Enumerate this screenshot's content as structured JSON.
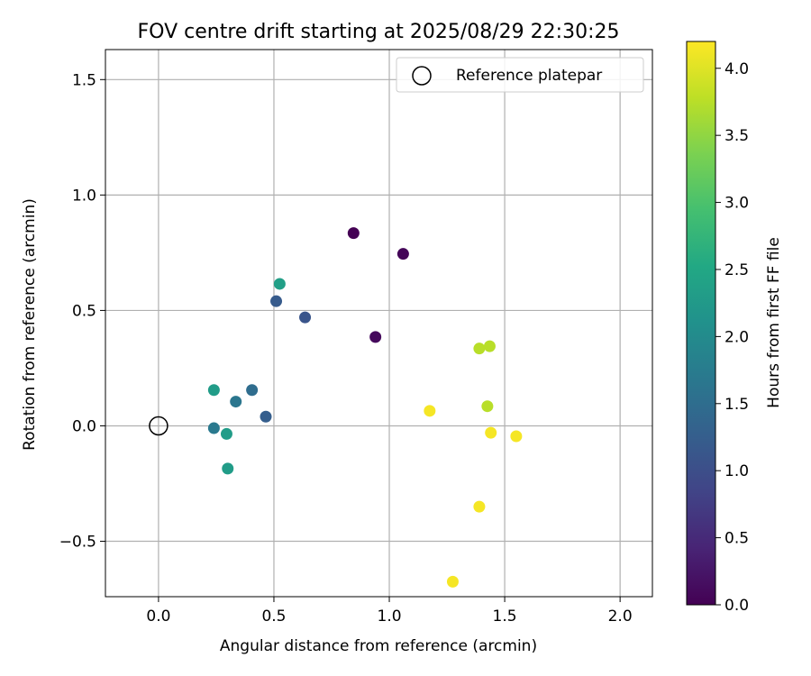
{
  "chart_data": {
    "type": "scatter",
    "title": "FOV centre drift starting at 2025/08/29 22:30:25",
    "xlabel": "Angular distance from reference (arcmin)",
    "ylabel": "Rotation from reference (arcmin)",
    "xlim": [
      -0.23,
      2.14
    ],
    "ylim": [
      -0.74,
      1.63
    ],
    "xticks": [
      0.0,
      0.5,
      1.0,
      1.5,
      2.0
    ],
    "xtick_labels": [
      "0.0",
      "0.5",
      "1.0",
      "1.5",
      "2.0"
    ],
    "yticks": [
      -0.5,
      0.0,
      0.5,
      1.0,
      1.5
    ],
    "ytick_labels": [
      "−0.5",
      "0.0",
      "0.5",
      "1.0",
      "1.5"
    ],
    "grid": true,
    "legend": {
      "placement": "top-right",
      "entries": [
        "Reference platepar"
      ]
    },
    "reference_point": {
      "x": 0.0,
      "y": 0.0,
      "label": "Reference platepar"
    },
    "colorbar": {
      "label": "Hours from first FF file",
      "colormap": "viridis",
      "range": [
        0.0,
        4.2
      ],
      "ticks": [
        0.0,
        0.5,
        1.0,
        1.5,
        2.0,
        2.5,
        3.0,
        3.5,
        4.0
      ],
      "tick_labels": [
        "0.0",
        "0.5",
        "1.0",
        "1.5",
        "2.0",
        "2.5",
        "3.0",
        "3.5",
        "4.0"
      ]
    },
    "points": [
      {
        "x": 0.845,
        "y": 0.835,
        "hours": 0.0
      },
      {
        "x": 1.06,
        "y": 0.745,
        "hours": 0.05
      },
      {
        "x": 0.94,
        "y": 0.385,
        "hours": 0.1
      },
      {
        "x": 0.635,
        "y": 0.47,
        "hours": 1.1
      },
      {
        "x": 0.51,
        "y": 0.54,
        "hours": 1.2
      },
      {
        "x": 0.465,
        "y": 0.04,
        "hours": 1.25
      },
      {
        "x": 0.405,
        "y": 0.155,
        "hours": 1.5
      },
      {
        "x": 0.335,
        "y": 0.105,
        "hours": 1.65
      },
      {
        "x": 0.24,
        "y": -0.01,
        "hours": 1.7
      },
      {
        "x": 0.525,
        "y": 0.615,
        "hours": 2.35
      },
      {
        "x": 0.24,
        "y": 0.155,
        "hours": 2.3
      },
      {
        "x": 0.295,
        "y": -0.035,
        "hours": 2.3
      },
      {
        "x": 0.3,
        "y": -0.185,
        "hours": 2.3
      },
      {
        "x": 1.39,
        "y": 0.335,
        "hours": 3.75
      },
      {
        "x": 1.435,
        "y": 0.345,
        "hours": 3.75
      },
      {
        "x": 1.425,
        "y": 0.085,
        "hours": 3.75
      },
      {
        "x": 1.175,
        "y": 0.065,
        "hours": 4.15
      },
      {
        "x": 1.44,
        "y": -0.03,
        "hours": 4.15
      },
      {
        "x": 1.55,
        "y": -0.045,
        "hours": 4.15
      },
      {
        "x": 1.39,
        "y": -0.35,
        "hours": 4.15
      },
      {
        "x": 1.275,
        "y": -0.675,
        "hours": 4.15
      }
    ]
  }
}
